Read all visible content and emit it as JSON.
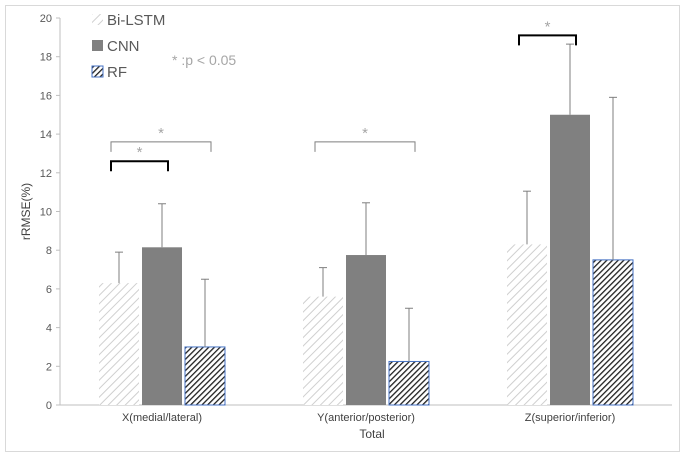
{
  "chart_data": {
    "type": "bar",
    "categories": [
      "X(medial/lateral)",
      "Y(anterior/posterior)",
      "Z(superior/inferior)"
    ],
    "series": [
      {
        "name": "Bi-LSTM",
        "values": [
          6.3,
          5.6,
          8.3
        ],
        "errors": [
          1.6,
          1.5,
          2.75
        ],
        "pattern": "light-diagonal"
      },
      {
        "name": "CNN",
        "values": [
          8.15,
          7.75,
          15.0
        ],
        "errors": [
          2.25,
          2.7,
          3.65
        ],
        "pattern": "solid"
      },
      {
        "name": "RF",
        "values": [
          3.0,
          2.25,
          7.5
        ],
        "errors": [
          3.5,
          2.75,
          8.4
        ],
        "pattern": "dark-diagonal"
      }
    ],
    "xlabel": "Total",
    "ylabel": "rRMSE(%)",
    "ylim": [
      0,
      20
    ],
    "yticks": [
      0,
      2,
      4,
      6,
      8,
      10,
      12,
      14,
      16,
      18,
      20
    ],
    "legend_position": "top-left",
    "grid": false,
    "annotation_text": "* :p < 0.05",
    "significance": [
      {
        "category": 0,
        "from_series": 0,
        "to_series": 1,
        "label": "*",
        "style": "bold"
      },
      {
        "category": 0,
        "from_series": 0,
        "to_series": 2,
        "label": "*",
        "style": "thin"
      },
      {
        "category": 1,
        "from_series": 0,
        "to_series": 2,
        "label": "*",
        "style": "thin"
      },
      {
        "category": 2,
        "from_series": 0,
        "to_series": 1,
        "label": "*",
        "style": "bold"
      }
    ],
    "colors": {
      "bilstm": "#d0d0d0",
      "cnn": "#808080",
      "rf_dark": "#1f1f1f",
      "rf_edge": "#4472c4",
      "axis": "#bfbfbf"
    }
  }
}
